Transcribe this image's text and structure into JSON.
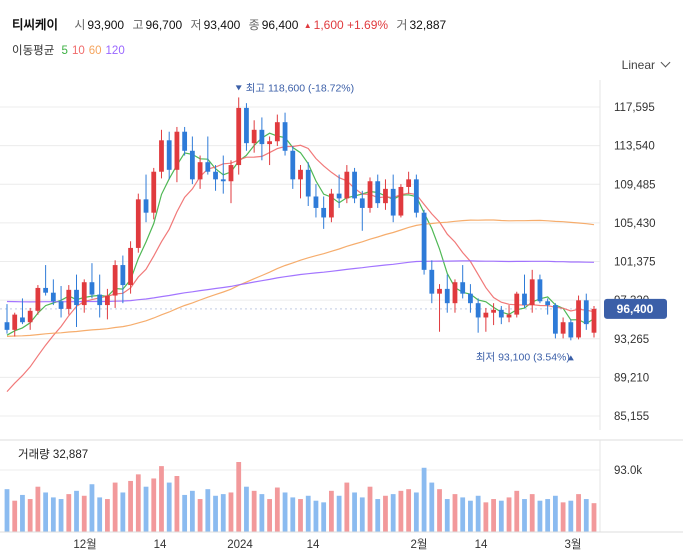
{
  "header": {
    "name": "티씨케이",
    "open_label": "시",
    "open": "93,900",
    "high_label": "고",
    "high": "96,700",
    "low_label": "저",
    "low": "93,400",
    "close_label": "종",
    "close": "96,400",
    "change": "1,600",
    "change_pct": "+1.69%",
    "volume_label": "거",
    "volume": "32,887"
  },
  "ma_legend": {
    "label": "이동평균",
    "items": [
      {
        "period": "5",
        "color": "#3cb043"
      },
      {
        "period": "10",
        "color": "#f06a6a"
      },
      {
        "period": "60",
        "color": "#f5a45d"
      },
      {
        "period": "120",
        "color": "#9966ff"
      }
    ]
  },
  "scale_mode": "Linear",
  "colors": {
    "up": "#e03a3e",
    "down": "#2e7bd8",
    "vol_up": "#f2999b",
    "vol_down": "#8bbbf0",
    "badge": "#3b5fa8"
  },
  "chart_data": {
    "type": "candlestick",
    "y_ticks": [
      "117,595",
      "113,540",
      "109,485",
      "105,430",
      "101,375",
      "97,320",
      "93,265",
      "89,210",
      "85,155"
    ],
    "x_labels": [
      "12월",
      "14",
      "2024",
      "14",
      "2월",
      "14",
      "3월"
    ],
    "last_price": "96,400",
    "max_annotation": "최고 118,600 (-18.72%)",
    "min_annotation": "최저 93,100 (3.54%)",
    "volume_title": "거래량 32,887",
    "volume_tick": "93.0k",
    "candles": [
      [
        95000,
        96900,
        93800,
        94200
      ],
      [
        94200,
        96000,
        93500,
        95800
      ],
      [
        95500,
        97500,
        94800,
        95000
      ],
      [
        95000,
        96500,
        94200,
        96200
      ],
      [
        96200,
        98900,
        95800,
        98600
      ],
      [
        98600,
        101000,
        97800,
        98100
      ],
      [
        98100,
        99500,
        96800,
        97200
      ],
      [
        97200,
        98800,
        95500,
        96400
      ],
      [
        96400,
        98900,
        95800,
        98400
      ],
      [
        98400,
        100000,
        94500,
        96800
      ],
      [
        96800,
        99500,
        96000,
        99200
      ],
      [
        99200,
        101200,
        97500,
        97900
      ],
      [
        97900,
        100000,
        95500,
        96800
      ],
      [
        96800,
        98500,
        95300,
        97800
      ],
      [
        97800,
        101500,
        96500,
        101000
      ],
      [
        101000,
        102000,
        97000,
        98900
      ],
      [
        98900,
        103500,
        98000,
        102800
      ],
      [
        102800,
        108500,
        102300,
        107900
      ],
      [
        107900,
        110500,
        105500,
        106500
      ],
      [
        106500,
        111200,
        105800,
        110800
      ],
      [
        110800,
        115200,
        110100,
        114100
      ],
      [
        114100,
        115000,
        110000,
        111000
      ],
      [
        111000,
        115500,
        109700,
        115000
      ],
      [
        115000,
        115500,
        112500,
        113000
      ],
      [
        113000,
        114500,
        109500,
        110000
      ],
      [
        110000,
        112500,
        109000,
        111800
      ],
      [
        111800,
        114500,
        110500,
        110800
      ],
      [
        110800,
        111500,
        108800,
        110000
      ],
      [
        110000,
        112500,
        108500,
        109800
      ],
      [
        109800,
        112000,
        107500,
        111500
      ],
      [
        111500,
        118600,
        110500,
        117500
      ],
      [
        117500,
        118000,
        113000,
        113800
      ],
      [
        113800,
        116200,
        112800,
        115200
      ],
      [
        115200,
        116500,
        112000,
        113700
      ],
      [
        113700,
        114500,
        111500,
        114000
      ],
      [
        114000,
        116800,
        113500,
        116000
      ],
      [
        116000,
        117000,
        112500,
        113000
      ],
      [
        113000,
        113500,
        109000,
        110000
      ],
      [
        110000,
        111500,
        108000,
        111000
      ],
      [
        111000,
        111800,
        107200,
        108200
      ],
      [
        108200,
        109500,
        106000,
        107000
      ],
      [
        107000,
        108200,
        104800,
        106000
      ],
      [
        106000,
        109000,
        105500,
        108500
      ],
      [
        108500,
        110500,
        107000,
        108000
      ],
      [
        108000,
        111500,
        107500,
        110800
      ],
      [
        110800,
        111200,
        107500,
        108000
      ],
      [
        108000,
        108800,
        104600,
        107000
      ],
      [
        107000,
        110200,
        106500,
        109800
      ],
      [
        109800,
        110500,
        107000,
        107500
      ],
      [
        107500,
        110000,
        106800,
        109000
      ],
      [
        109000,
        110500,
        105500,
        106200
      ],
      [
        106200,
        109500,
        106000,
        109200
      ],
      [
        109200,
        110800,
        108500,
        110000
      ],
      [
        110000,
        110500,
        106000,
        106500
      ],
      [
        106500,
        106800,
        100000,
        100500
      ],
      [
        100500,
        101500,
        97000,
        98000
      ],
      [
        98000,
        99000,
        94000,
        98500
      ],
      [
        98500,
        100000,
        96000,
        97000
      ],
      [
        97000,
        99500,
        96000,
        99200
      ],
      [
        99200,
        101000,
        97500,
        98000
      ],
      [
        98000,
        99000,
        96000,
        97000
      ],
      [
        97000,
        97500,
        93900,
        95500
      ],
      [
        95500,
        96500,
        94000,
        96000
      ],
      [
        96000,
        97000,
        94700,
        96300
      ],
      [
        96300,
        96700,
        94800,
        95500
      ],
      [
        95500,
        96800,
        95000,
        95800
      ],
      [
        95800,
        98200,
        95500,
        98000
      ],
      [
        98000,
        100000,
        96500,
        96800
      ],
      [
        96800,
        100500,
        96000,
        99500
      ],
      [
        99500,
        100000,
        97000,
        97200
      ],
      [
        97200,
        97500,
        95800,
        96800
      ],
      [
        96800,
        97000,
        93300,
        93800
      ],
      [
        93800,
        95500,
        93300,
        95000
      ],
      [
        95000,
        95300,
        93100,
        93400
      ],
      [
        93400,
        97800,
        93200,
        97300
      ],
      [
        97300,
        98000,
        94200,
        94800
      ],
      [
        93900,
        96700,
        93400,
        96400
      ]
    ],
    "volumes": [
      52,
      38,
      45,
      40,
      55,
      48,
      42,
      40,
      46,
      50,
      44,
      58,
      42,
      40,
      60,
      48,
      62,
      70,
      55,
      65,
      80,
      60,
      68,
      45,
      50,
      40,
      52,
      44,
      46,
      48,
      85,
      55,
      50,
      46,
      40,
      54,
      48,
      42,
      40,
      44,
      38,
      36,
      50,
      44,
      60,
      48,
      42,
      55,
      40,
      44,
      46,
      50,
      52,
      48,
      78,
      60,
      52,
      40,
      46,
      42,
      38,
      44,
      36,
      40,
      38,
      42,
      50,
      40,
      46,
      38,
      40,
      44,
      36,
      38,
      46,
      40,
      35
    ],
    "volume_up": [
      false,
      true,
      false,
      true,
      true,
      false,
      false,
      false,
      true,
      false,
      true,
      false,
      false,
      true,
      true,
      false,
      true,
      true,
      false,
      true,
      true,
      false,
      true,
      false,
      false,
      true,
      false,
      false,
      false,
      true,
      true,
      false,
      true,
      false,
      true,
      true,
      false,
      false,
      true,
      false,
      false,
      false,
      true,
      false,
      true,
      false,
      false,
      true,
      false,
      true,
      false,
      true,
      true,
      false,
      false,
      false,
      true,
      false,
      true,
      false,
      false,
      false,
      true,
      true,
      false,
      true,
      true,
      false,
      true,
      false,
      false,
      false,
      true,
      false,
      true,
      false,
      true
    ]
  }
}
